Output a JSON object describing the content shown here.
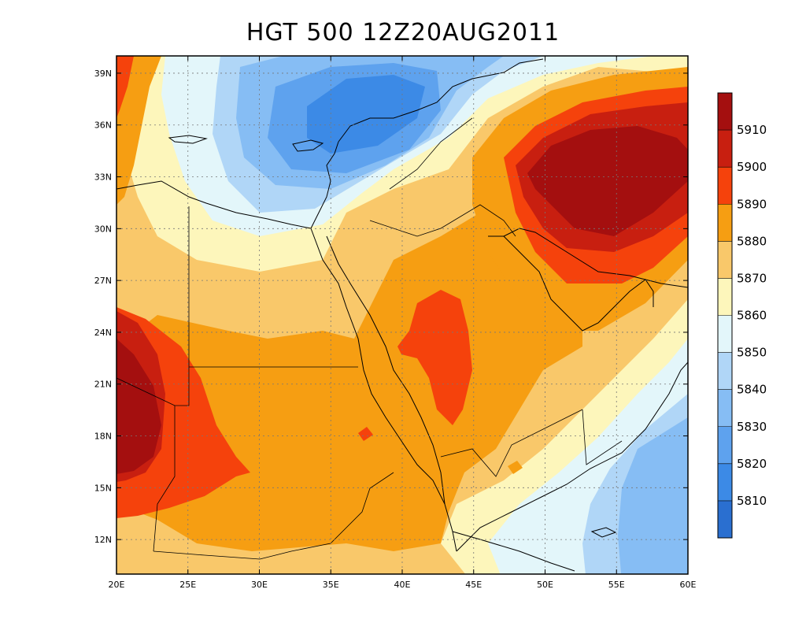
{
  "title": "HGT 500 12Z20AUG2011",
  "map": {
    "lon_range": [
      20,
      60
    ],
    "lat_range": [
      10,
      40
    ],
    "lon_ticks": [
      {
        "value": 20,
        "label": "20E"
      },
      {
        "value": 25,
        "label": "25E"
      },
      {
        "value": 30,
        "label": "30E"
      },
      {
        "value": 35,
        "label": "35E"
      },
      {
        "value": 40,
        "label": "40E"
      },
      {
        "value": 45,
        "label": "45E"
      },
      {
        "value": 50,
        "label": "50E"
      },
      {
        "value": 55,
        "label": "55E"
      },
      {
        "value": 60,
        "label": "60E"
      }
    ],
    "lat_ticks": [
      {
        "value": 12,
        "label": "12N"
      },
      {
        "value": 15,
        "label": "15N"
      },
      {
        "value": 18,
        "label": "18N"
      },
      {
        "value": 21,
        "label": "21N"
      },
      {
        "value": 24,
        "label": "24N"
      },
      {
        "value": 27,
        "label": "27N"
      },
      {
        "value": 30,
        "label": "30N"
      },
      {
        "value": 33,
        "label": "33N"
      },
      {
        "value": 36,
        "label": "36N"
      },
      {
        "value": 39,
        "label": "39N"
      }
    ],
    "grid": true
  },
  "colorbar": {
    "levels": [
      {
        "label": "5810",
        "color": "#2a6fd0"
      },
      {
        "label": "5820",
        "color": "#3c8ae6"
      },
      {
        "label": "5830",
        "color": "#5ea2ee"
      },
      {
        "label": "5840",
        "color": "#86bdf4"
      },
      {
        "label": "5850",
        "color": "#b0d6f7"
      },
      {
        "label": "5860",
        "color": "#e3f6fa"
      },
      {
        "label": "5870",
        "color": "#fdf6bb"
      },
      {
        "label": "5880",
        "color": "#f9c86a"
      },
      {
        "label": "5890",
        "color": "#f69e12"
      },
      {
        "label": "5900",
        "color": "#f5420c"
      },
      {
        "label": "5910",
        "color": "#c81f10"
      }
    ],
    "top_color": "#a40f0f"
  },
  "chart_data": {
    "type": "heatmap",
    "title": "HGT 500 12Z20AUG2011",
    "variable": "500 hPa geopotential height",
    "xlim": [
      20,
      60
    ],
    "ylim": [
      10,
      40
    ],
    "xlabel": "",
    "ylabel": "",
    "contour_levels": [
      5810,
      5820,
      5830,
      5840,
      5850,
      5860,
      5870,
      5880,
      5890,
      5900,
      5910
    ],
    "features": [
      {
        "type": "max",
        "lon": 53,
        "lat": 33,
        "value": ">5910"
      },
      {
        "type": "min",
        "lon": 37,
        "lat": 36,
        "value": "<5840"
      },
      {
        "type": "max",
        "lon": 21,
        "lat": 19.5,
        "value": ">5910"
      },
      {
        "type": "max",
        "lon": 43,
        "lat": 23,
        "value": ">5900"
      },
      {
        "type": "min",
        "lon": 58,
        "lat": 14,
        "value": "<5850"
      }
    ]
  }
}
